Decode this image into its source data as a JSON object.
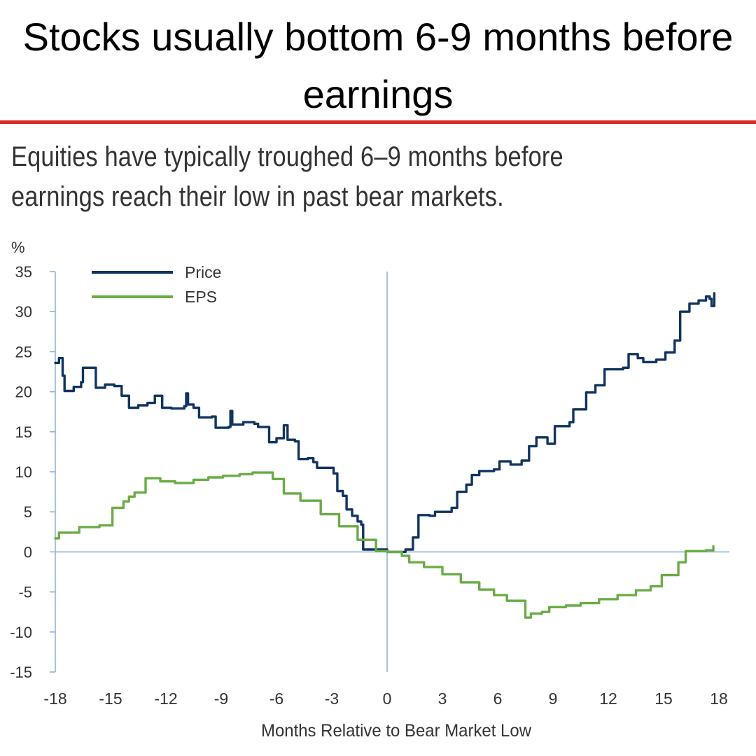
{
  "headline": "Stocks usually bottom 6-9 months before earnings",
  "colors": {
    "accent_rule": "#d62b2b",
    "price": "#0f3460",
    "eps": "#6aac46",
    "axis": "#8fb3d9",
    "text": "#333333"
  },
  "chart_data": {
    "type": "line",
    "title": "Equities have typically troughed 6–9 months before earnings reach their low in past bear markets.",
    "ylabel": "%",
    "xlabel": "Months Relative to Bear Market Low",
    "xlim": [
      -18,
      18
    ],
    "ylim": [
      -15,
      35
    ],
    "xticks": [
      "-18",
      "-15",
      "-12",
      "-9",
      "-6",
      "-3",
      "0",
      "3",
      "6",
      "9",
      "12",
      "15",
      "18"
    ],
    "yticks": [
      "35",
      "30",
      "25",
      "20",
      "15",
      "10",
      "5",
      "0",
      "-5",
      "-10",
      "-15"
    ],
    "legend": "top-left",
    "grid": false,
    "series": [
      {
        "name": "Price",
        "step": true,
        "points": [
          [
            -18,
            23.6
          ],
          [
            -17.8,
            24.2
          ],
          [
            -17.6,
            22.0
          ],
          [
            -17.5,
            20.1
          ],
          [
            -17,
            20.6
          ],
          [
            -16.6,
            21.2
          ],
          [
            -16.5,
            23.0
          ],
          [
            -15.8,
            20.5
          ],
          [
            -15.3,
            20.9
          ],
          [
            -14.8,
            20.7
          ],
          [
            -14.4,
            19.5
          ],
          [
            -14.0,
            18.0
          ],
          [
            -13.5,
            18.3
          ],
          [
            -13.0,
            18.6
          ],
          [
            -12.6,
            19.5
          ],
          [
            -12.2,
            18.0
          ],
          [
            -11.7,
            17.9
          ],
          [
            -11.0,
            18.2
          ],
          [
            -10.9,
            19.8
          ],
          [
            -10.8,
            18.4
          ],
          [
            -10.5,
            18.0
          ],
          [
            -10.2,
            16.8
          ],
          [
            -9.5,
            16.9
          ],
          [
            -9.3,
            15.5
          ],
          [
            -8.6,
            15.6
          ],
          [
            -8.5,
            17.6
          ],
          [
            -8.4,
            15.9
          ],
          [
            -7.8,
            16.2
          ],
          [
            -7.2,
            16.0
          ],
          [
            -7.0,
            15.6
          ],
          [
            -6.4,
            13.7
          ],
          [
            -6.0,
            14.2
          ],
          [
            -5.6,
            15.8
          ],
          [
            -5.4,
            14.0
          ],
          [
            -5.0,
            13.8
          ],
          [
            -4.8,
            11.6
          ],
          [
            -4.3,
            11.7
          ],
          [
            -4.0,
            11.2
          ],
          [
            -3.8,
            10.5
          ],
          [
            -3.1,
            10.5
          ],
          [
            -2.9,
            9.8
          ],
          [
            -2.7,
            7.6
          ],
          [
            -2.4,
            7.0
          ],
          [
            -2.2,
            5.3
          ],
          [
            -1.9,
            4.5
          ],
          [
            -1.6,
            3.8
          ],
          [
            -1.4,
            3.4
          ],
          [
            -1.3,
            0.3
          ],
          [
            0,
            0
          ],
          [
            1.0,
            0.3
          ],
          [
            1.4,
            1.8
          ],
          [
            1.7,
            4.6
          ],
          [
            2.3,
            4.5
          ],
          [
            2.6,
            5.0
          ],
          [
            3.5,
            5.5
          ],
          [
            3.8,
            7.5
          ],
          [
            4.3,
            8.4
          ],
          [
            4.6,
            9.6
          ],
          [
            5.0,
            10.1
          ],
          [
            5.8,
            10.3
          ],
          [
            6.1,
            11.3
          ],
          [
            6.7,
            10.9
          ],
          [
            7.3,
            11.4
          ],
          [
            7.7,
            13.2
          ],
          [
            8.1,
            14.3
          ],
          [
            8.7,
            13.5
          ],
          [
            9.1,
            15.7
          ],
          [
            9.9,
            16.2
          ],
          [
            10.1,
            17.8
          ],
          [
            10.8,
            19.9
          ],
          [
            11.3,
            20.8
          ],
          [
            11.8,
            22.8
          ],
          [
            12.8,
            23.0
          ],
          [
            13.1,
            24.7
          ],
          [
            13.6,
            24.2
          ],
          [
            13.9,
            23.7
          ],
          [
            14.6,
            24.0
          ],
          [
            15.1,
            24.9
          ],
          [
            15.6,
            26.4
          ],
          [
            15.9,
            30.0
          ],
          [
            16.4,
            31.0
          ],
          [
            16.9,
            31.4
          ],
          [
            17.3,
            31.9
          ],
          [
            17.5,
            31.6
          ],
          [
            17.6,
            30.7
          ],
          [
            17.75,
            32.3
          ]
        ]
      },
      {
        "name": "EPS",
        "step": true,
        "points": [
          [
            -18,
            1.7
          ],
          [
            -17.8,
            2.4
          ],
          [
            -16.7,
            3.1
          ],
          [
            -15.6,
            3.3
          ],
          [
            -14.9,
            5.5
          ],
          [
            -14.3,
            6.3
          ],
          [
            -14.0,
            6.9
          ],
          [
            -13.7,
            7.4
          ],
          [
            -13.1,
            9.2
          ],
          [
            -12.3,
            8.8
          ],
          [
            -11.5,
            8.6
          ],
          [
            -10.5,
            9.0
          ],
          [
            -9.7,
            9.3
          ],
          [
            -8.9,
            9.5
          ],
          [
            -8.0,
            9.7
          ],
          [
            -7.3,
            9.9
          ],
          [
            -6.2,
            9.1
          ],
          [
            -5.6,
            7.3
          ],
          [
            -4.7,
            6.4
          ],
          [
            -3.6,
            4.7
          ],
          [
            -2.6,
            3.2
          ],
          [
            -1.6,
            1.5
          ],
          [
            -0.6,
            0.1
          ],
          [
            0,
            0
          ],
          [
            0.8,
            -0.5
          ],
          [
            1.2,
            -1.3
          ],
          [
            2.0,
            -1.9
          ],
          [
            3.0,
            -2.8
          ],
          [
            4.0,
            -3.8
          ],
          [
            5.0,
            -4.7
          ],
          [
            5.8,
            -5.4
          ],
          [
            6.5,
            -6.1
          ],
          [
            7.5,
            -8.2
          ],
          [
            7.8,
            -7.7
          ],
          [
            8.4,
            -7.5
          ],
          [
            8.8,
            -6.9
          ],
          [
            9.7,
            -6.7
          ],
          [
            10.5,
            -6.4
          ],
          [
            11.5,
            -5.9
          ],
          [
            12.5,
            -5.4
          ],
          [
            13.5,
            -4.8
          ],
          [
            14.3,
            -4.3
          ],
          [
            14.9,
            -2.9
          ],
          [
            15.8,
            -1.3
          ],
          [
            16.2,
            0.1
          ],
          [
            17.3,
            0.2
          ],
          [
            17.7,
            0.7
          ]
        ]
      }
    ]
  }
}
